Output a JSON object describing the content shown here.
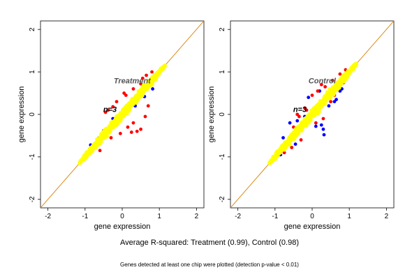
{
  "chart_data": [
    {
      "type": "scatter",
      "title": "",
      "panel_label": "Treatment",
      "annotation": "n=3",
      "xlabel": "gene expression",
      "ylabel": "gene expression",
      "xlim": [
        -2.2,
        2.2
      ],
      "ylim": [
        -2.2,
        2.2
      ],
      "xticks": [
        -2,
        -1,
        0,
        1,
        2
      ],
      "yticks": [
        -2,
        -1,
        0,
        1,
        2
      ],
      "grid": false,
      "reference_line": {
        "slope": 1,
        "intercept": 0,
        "color": "#d98c1a"
      },
      "point_cloud": {
        "x_range": [
          -1.15,
          1.15
        ],
        "y_range": [
          -1.15,
          1.15
        ],
        "max_spread": 0.32
      },
      "series": [
        {
          "color": "#0000ff",
          "points": [
            [
              -0.62,
              -0.55
            ],
            [
              -0.5,
              -0.38
            ],
            [
              -0.25,
              -0.1
            ],
            [
              0.35,
              0.2
            ],
            [
              0.6,
              0.42
            ],
            [
              -0.85,
              -0.72
            ],
            [
              0.82,
              0.6
            ]
          ]
        },
        {
          "color": "#ff0000",
          "points": [
            [
              -0.45,
              0.05
            ],
            [
              -0.38,
              0.1
            ],
            [
              -0.25,
              0.18
            ],
            [
              0.1,
              0.45
            ],
            [
              0.3,
              0.6
            ],
            [
              0.5,
              0.72
            ],
            [
              0.65,
              0.92
            ],
            [
              0.8,
              1.0
            ],
            [
              -0.05,
              -0.45
            ],
            [
              0.15,
              -0.3
            ],
            [
              0.3,
              -0.2
            ],
            [
              0.4,
              -0.4
            ],
            [
              0.5,
              -0.35
            ],
            [
              0.62,
              -0.05
            ],
            [
              -0.3,
              -0.55
            ],
            [
              0.05,
              0.5
            ],
            [
              0.95,
              0.95
            ],
            [
              0.55,
              0.85
            ],
            [
              -0.15,
              0.3
            ],
            [
              0.25,
              -0.42
            ],
            [
              -0.6,
              -0.85
            ],
            [
              0.7,
              0.2
            ]
          ]
        },
        {
          "color": "#ffff00"
        }
      ]
    },
    {
      "type": "scatter",
      "title": "",
      "panel_label": "Control",
      "annotation": "n=3",
      "xlabel": "gene expression",
      "ylabel": "gene expression",
      "xlim": [
        -2.2,
        2.2
      ],
      "ylim": [
        -2.2,
        2.2
      ],
      "xticks": [
        -2,
        -1,
        0,
        1,
        2
      ],
      "yticks": [
        -2,
        -1,
        0,
        1,
        2
      ],
      "grid": false,
      "reference_line": {
        "slope": 1,
        "intercept": 0,
        "color": "#d98c1a"
      },
      "point_cloud": {
        "x_range": [
          -1.15,
          1.2
        ],
        "y_range": [
          -1.1,
          1.2
        ],
        "max_spread": 0.34
      },
      "series": [
        {
          "color": "#0000ff",
          "points": [
            [
              -0.55,
              -0.48
            ],
            [
              -0.4,
              -0.15
            ],
            [
              -0.2,
              -0.05
            ],
            [
              0.25,
              -0.25
            ],
            [
              0.3,
              -0.35
            ],
            [
              0.32,
              -0.48
            ],
            [
              0.1,
              -0.28
            ],
            [
              0.45,
              0.2
            ],
            [
              0.6,
              0.3
            ],
            [
              0.65,
              0.35
            ],
            [
              -0.78,
              -0.55
            ],
            [
              -0.85,
              -0.95
            ],
            [
              0.75,
              0.55
            ],
            [
              0.2,
              0.55
            ],
            [
              -0.1,
              0.4
            ],
            [
              -0.6,
              -0.2
            ],
            [
              0.8,
              0.6
            ],
            [
              -0.45,
              -0.7
            ]
          ]
        },
        {
          "color": "#ff0000",
          "points": [
            [
              -0.5,
              -0.3
            ],
            [
              -0.35,
              -0.05
            ],
            [
              -0.2,
              0.15
            ],
            [
              0.0,
              0.45
            ],
            [
              0.15,
              0.55
            ],
            [
              0.35,
              0.65
            ],
            [
              0.55,
              0.8
            ],
            [
              0.75,
              0.95
            ],
            [
              0.1,
              -0.2
            ],
            [
              0.3,
              -0.1
            ],
            [
              -0.55,
              -0.78
            ],
            [
              -0.75,
              -0.9
            ],
            [
              -0.3,
              -0.6
            ],
            [
              0.5,
              0.3
            ],
            [
              0.85,
              0.75
            ],
            [
              0.6,
              0.45
            ],
            [
              -0.15,
              0.1
            ],
            [
              0.25,
              0.7
            ],
            [
              -0.4,
              0.0
            ],
            [
              0.9,
              1.05
            ]
          ]
        },
        {
          "color": "#ffff00"
        }
      ]
    }
  ],
  "captions": {
    "main": "Average R-squared: Treatment (0.99), Control (0.98)",
    "note": "Genes detected at least one chip were plotted (detection p-value < 0.01)"
  }
}
